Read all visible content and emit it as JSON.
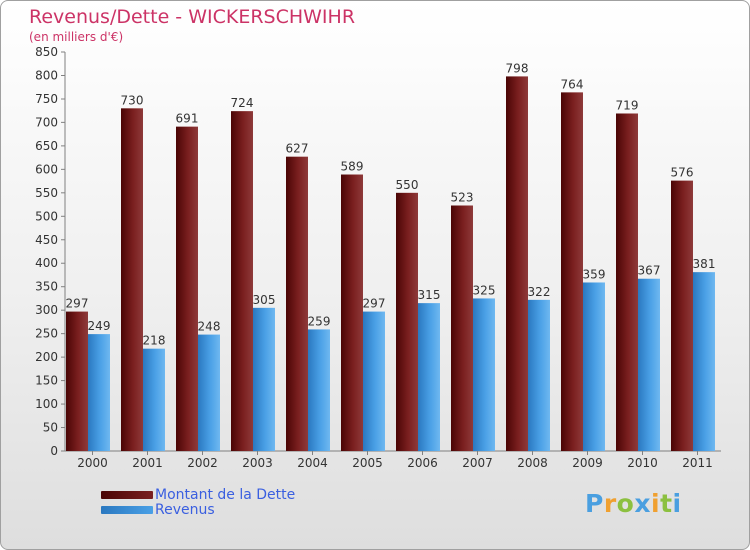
{
  "header": {
    "title": "Revenus/Dette - WICKERSCHWIHR",
    "subtitle": "(en milliers d'€)"
  },
  "chart_data": {
    "type": "bar",
    "title": "Revenus/Dette - WICKERSCHWIHR",
    "ylabel": "(en milliers d'€)",
    "categories": [
      "2000",
      "2001",
      "2002",
      "2003",
      "2004",
      "2005",
      "2006",
      "2007",
      "2008",
      "2009",
      "2010",
      "2011"
    ],
    "ylim": [
      0,
      850
    ],
    "yticks": [
      0,
      50,
      100,
      150,
      200,
      250,
      300,
      350,
      400,
      450,
      500,
      550,
      600,
      650,
      700,
      750,
      800,
      850
    ],
    "grid": false,
    "legend_position": "bottom-left",
    "series": [
      {
        "name": "Montant de la Dette",
        "color": "#7a1f1f",
        "values": [
          297,
          730,
          691,
          724,
          627,
          589,
          550,
          523,
          798,
          764,
          719,
          576
        ]
      },
      {
        "name": "Revenus",
        "color": "#4aa0e6",
        "values": [
          249,
          218,
          248,
          305,
          259,
          297,
          315,
          325,
          322,
          359,
          367,
          381
        ]
      }
    ]
  },
  "legend": {
    "items": [
      {
        "label": "Montant de la Dette",
        "color": "#6b0f0f"
      },
      {
        "label": "Revenus",
        "color": "#3d9ae0"
      }
    ]
  },
  "brand": {
    "letters": [
      "P",
      "r",
      "o",
      "x",
      "i",
      "t",
      "i"
    ],
    "colors": [
      "#4a9fe0",
      "#f0a030",
      "#8cc040",
      "#4a9fe0",
      "#f0a030",
      "#8cc040",
      "#4a9fe0"
    ]
  }
}
